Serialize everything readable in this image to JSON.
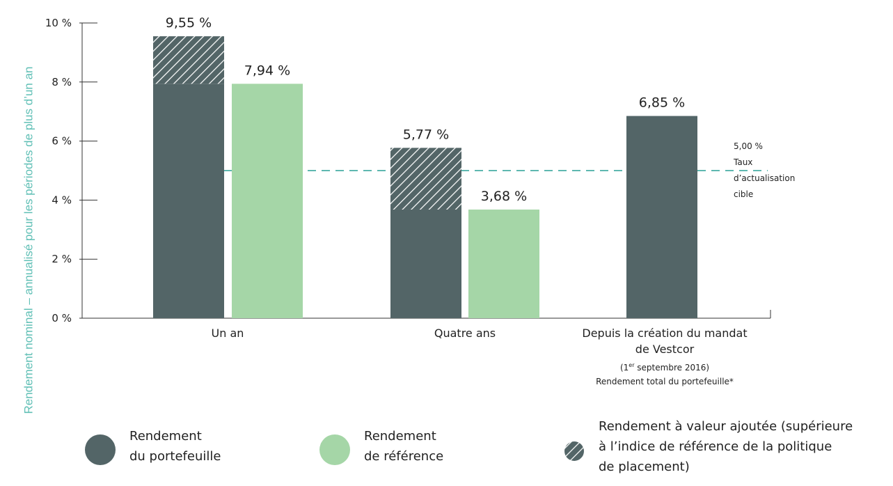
{
  "chart_data": {
    "type": "bar",
    "ylabel": "Rendement nominal – annualisé pour les périodes de plus d’un an",
    "ylim": [
      0,
      10
    ],
    "yticks": [
      "0 %",
      "2 %",
      "4 %",
      "6 %",
      "8 %",
      "10 %"
    ],
    "categories": [
      {
        "lines": [
          "Un an"
        ]
      },
      {
        "lines": [
          "Quatre ans"
        ]
      },
      {
        "lines": [
          "Depuis la création du mandat",
          "de Vestcor"
        ],
        "note_prefix": "(1",
        "note_sup": "er",
        "note_suffix": " septembre 2016)",
        "note2": "Rendement total du portefeuille*"
      }
    ],
    "series": [
      {
        "name": "Rendement du portefeuille",
        "color": "#536567",
        "values": [
          7.94,
          3.68,
          6.85
        ],
        "labels": [
          "",
          "",
          "6,85 %"
        ]
      },
      {
        "name": "Rendement de référence",
        "color": "#a5d6a7",
        "values": [
          7.94,
          3.68,
          null
        ],
        "labels": [
          "7,94 %",
          "3,68 %",
          ""
        ]
      },
      {
        "name": "Rendement à valeur ajoutée",
        "color": "#536567",
        "pattern": "hatch",
        "stack_on": 0,
        "values": [
          1.61,
          2.09,
          null
        ],
        "labels": [
          "9,55 %",
          "5,77 %",
          ""
        ]
      }
    ],
    "reference_line": {
      "value": 5.0,
      "color": "#5fb8b0",
      "style": "dashed",
      "label_lines": [
        "5,00 %",
        "Taux",
        "d’actualisation",
        "cible"
      ]
    }
  },
  "legend": {
    "items": [
      {
        "label_lines": [
          "Rendement",
          "du portefeuille"
        ],
        "color": "#536567"
      },
      {
        "label_lines": [
          "Rendement",
          "de référence"
        ],
        "color": "#a5d6a7"
      },
      {
        "label_lines": [
          "Rendement à valeur ajoutée (supérieure",
          "à l’indice de référence de la politique",
          "de placement)"
        ],
        "color": "#536567",
        "pattern": "hatch"
      }
    ]
  }
}
